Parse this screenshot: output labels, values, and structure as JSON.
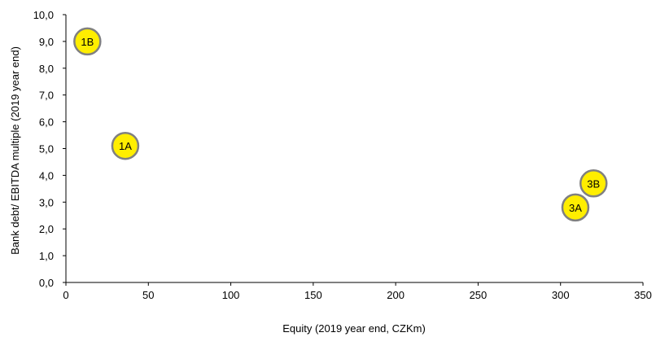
{
  "chart_data": {
    "type": "scatter",
    "xlabel": "Equity (2019 year end, CZKm)",
    "ylabel": "Bank debt/ EBITDA multiple (2019 year end)",
    "xlim": [
      0,
      350
    ],
    "ylim": [
      0,
      10
    ],
    "x_ticks": [
      "0",
      "50",
      "100",
      "150",
      "200",
      "250",
      "300",
      "350"
    ],
    "y_ticks": [
      "0,0",
      "1,0",
      "2,0",
      "3,0",
      "4,0",
      "5,0",
      "6,0",
      "7,0",
      "8,0",
      "9,0",
      "10,0"
    ],
    "grid": false,
    "points": [
      {
        "label": "1B",
        "x": 13,
        "y": 9.0
      },
      {
        "label": "1A",
        "x": 36,
        "y": 5.1
      },
      {
        "label": "3B",
        "x": 320,
        "y": 3.7
      },
      {
        "label": "3A",
        "x": 309,
        "y": 2.8
      }
    ],
    "colors": {
      "fill": "#ffee00",
      "stroke": "#808080",
      "axis": "#000000"
    }
  }
}
